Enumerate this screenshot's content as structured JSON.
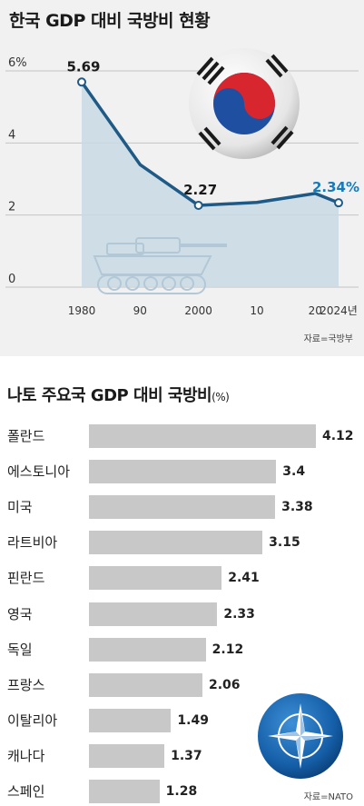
{
  "chart_data": [
    {
      "type": "line",
      "title": "한국 GDP 대비 국방비 현황",
      "x_tick_labels": [
        "1980",
        "90",
        "2000",
        "10",
        "20",
        "2024년"
      ],
      "y_tick_labels": [
        "0",
        "2",
        "4",
        "6%"
      ],
      "ylim": [
        0,
        6
      ],
      "xlim": [
        1980,
        2024
      ],
      "series": [
        {
          "x": [
            1980,
            1990,
            2000,
            2010,
            2020,
            2024
          ],
          "y": [
            5.69,
            3.4,
            2.27,
            2.35,
            2.6,
            2.34
          ],
          "color": "#1f5a86"
        }
      ],
      "data_labels": [
        {
          "x": 1980,
          "y": 5.69,
          "text": "5.69"
        },
        {
          "x": 2000,
          "y": 2.27,
          "text": "2.27"
        },
        {
          "x": 2024,
          "y": 2.34,
          "text": "2.34%"
        }
      ],
      "source": "자료=국방부",
      "fill_color": "#c9d9e4",
      "label_highlight_color": "#1a7ab8"
    },
    {
      "type": "bar",
      "orientation": "horizontal",
      "title": "나토 주요국 GDP 대비 국방비",
      "unit": "(%)",
      "categories": [
        "폴란드",
        "에스토니아",
        "미국",
        "라트비아",
        "핀란드",
        "영국",
        "독일",
        "프랑스",
        "이탈리아",
        "캐나다",
        "스페인"
      ],
      "values": [
        4.12,
        3.4,
        3.38,
        3.15,
        2.41,
        2.33,
        2.12,
        2.06,
        1.49,
        1.37,
        1.28
      ],
      "value_labels": [
        "4.12",
        "3.4",
        "3.38",
        "3.15",
        "2.41",
        "2.33",
        "2.12",
        "2.06",
        "1.49",
        "1.37",
        "1.28"
      ],
      "source": "자료=NATO",
      "bar_color": "#c8c8c8"
    }
  ],
  "icons": [
    "korea-flag-ball-icon",
    "tank-icon",
    "nato-emblem-icon"
  ]
}
